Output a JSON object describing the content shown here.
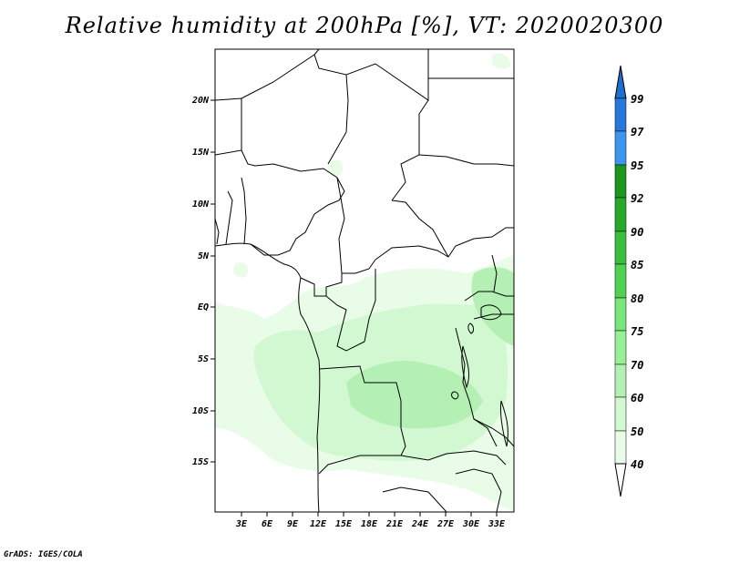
{
  "title": "Relative humidity at 200hPa [%], VT: 2020020300",
  "footer": "GrADS: IGES/COLA",
  "map": {
    "lat_labels": [
      "20N",
      "15N",
      "10N",
      "5N",
      "EQ",
      "5S",
      "10S",
      "15S"
    ],
    "lon_labels": [
      "3E",
      "6E",
      "9E",
      "12E",
      "15E",
      "18E",
      "21E",
      "24E",
      "27E",
      "30E",
      "33E"
    ]
  },
  "colorbar": {
    "labels": [
      "99",
      "97",
      "95",
      "92",
      "90",
      "85",
      "80",
      "75",
      "70",
      "60",
      "50",
      "40"
    ],
    "colors": {
      "above_99": "#1e6ed2",
      "97_99": "#2878dc",
      "95_97": "#3c96f0",
      "92_95": "#1e961e",
      "90_92": "#28a828",
      "85_90": "#3cbe3c",
      "80_85": "#50d250",
      "75_80": "#78e678",
      "70_75": "#96f096",
      "60_70": "#b4f0b4",
      "50_60": "#d2f8d2",
      "40_50": "#e8fce8",
      "below_40": "#ffffff"
    }
  },
  "field_colors": {
    "light": "#e8fce8",
    "mid": "#d2f8d2",
    "dark": "#b4f0b4",
    "darker": "#96f096"
  }
}
